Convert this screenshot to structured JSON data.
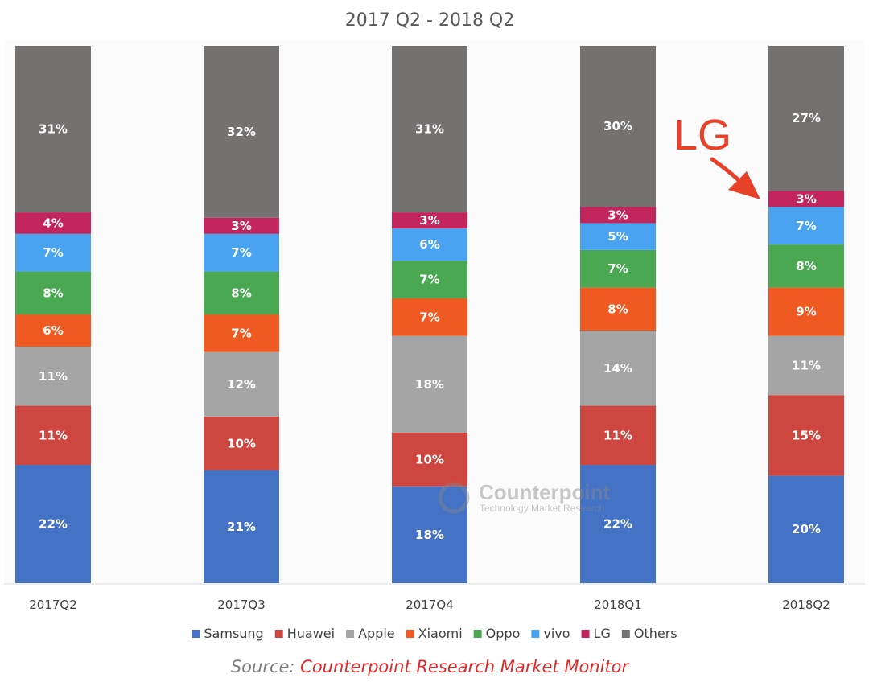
{
  "chart_data": {
    "type": "bar",
    "stacked": true,
    "title": "2017 Q2 - 2018 Q2",
    "categories": [
      "2017Q2",
      "2017Q3",
      "2017Q4",
      "2018Q1",
      "2018Q2"
    ],
    "unit": "%",
    "ylim": [
      0,
      100
    ],
    "grid": false,
    "legend_position": "bottom",
    "series": [
      {
        "name": "Samsung",
        "color": "#4472c4",
        "values": [
          22,
          21,
          18,
          22,
          20
        ]
      },
      {
        "name": "Huawei",
        "color": "#cd4740",
        "values": [
          11,
          10,
          10,
          11,
          15
        ]
      },
      {
        "name": "Apple",
        "color": "#a5a5a5",
        "values": [
          11,
          12,
          18,
          14,
          11
        ]
      },
      {
        "name": "Xiaomi",
        "color": "#ef5a23",
        "values": [
          6,
          7,
          7,
          8,
          9
        ]
      },
      {
        "name": "Oppo",
        "color": "#4aa853",
        "values": [
          8,
          8,
          7,
          7,
          8
        ]
      },
      {
        "name": "vivo",
        "color": "#4aa3f0",
        "values": [
          7,
          7,
          6,
          5,
          7
        ]
      },
      {
        "name": "LG",
        "color": "#c2255c",
        "values": [
          4,
          3,
          3,
          3,
          3
        ]
      },
      {
        "name": "Others",
        "color": "#747171",
        "values": [
          31,
          32,
          31,
          30,
          27
        ]
      }
    ],
    "annotations": [
      {
        "text": "LG",
        "points_to": {
          "category": "2018Q2",
          "series": "LG"
        },
        "color": "#e8412a"
      }
    ]
  },
  "watermark": {
    "brand": "Counterpoint",
    "tagline": "Technology Market Research"
  },
  "source": {
    "prefix": "Source: ",
    "name": "Counterpoint Research Market Monitor"
  }
}
